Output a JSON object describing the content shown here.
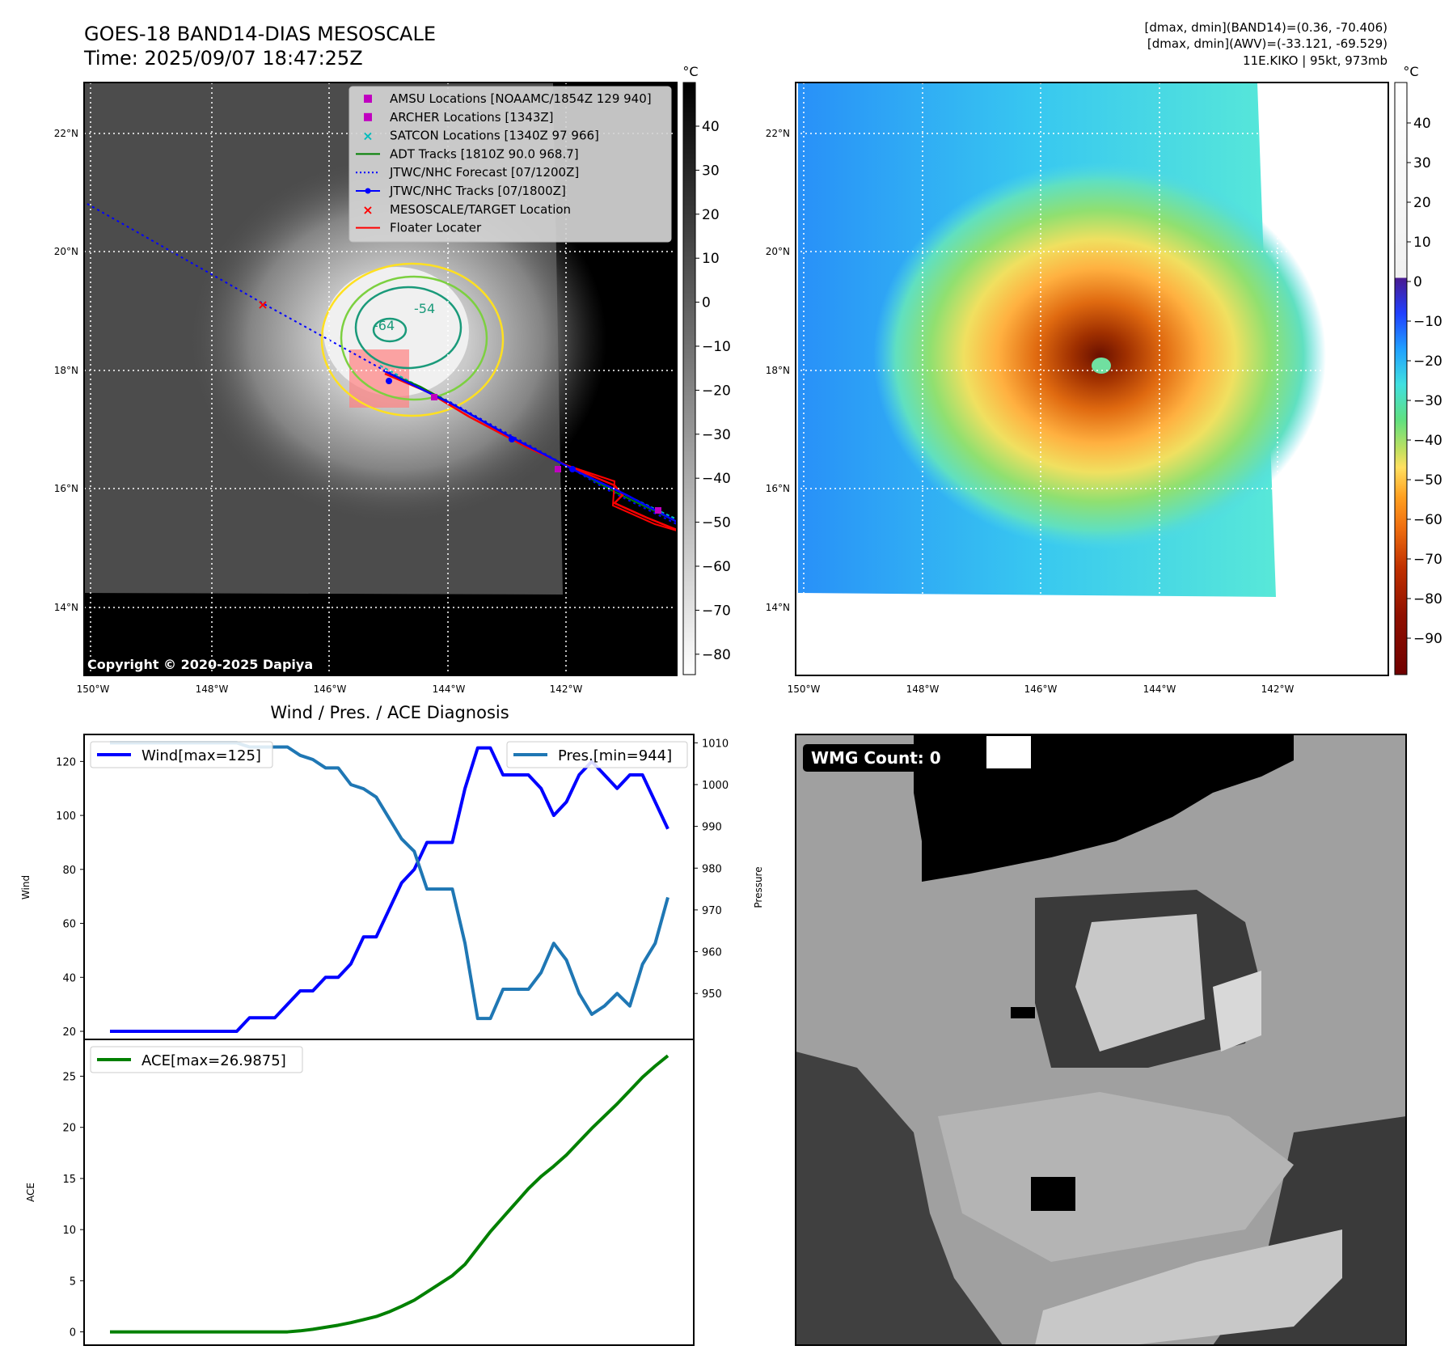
{
  "header": {
    "title_line1": "GOES-18 BAND14-DIAS MESOSCALE",
    "title_line2": "Time: 2025/09/07 18:47:25Z",
    "info_line1": "[dmax, dmin](BAND14)=(0.36, -70.406)",
    "info_line2": "[dmax, dmin](AWV)=(-33.121, -69.529)",
    "info_line3": "11E.KIKO | 95kt, 973mb"
  },
  "map": {
    "lat_labels": [
      "22°N",
      "20°N",
      "18°N",
      "16°N",
      "14°N"
    ],
    "lon_labels": [
      "150°W",
      "148°W",
      "146°W",
      "144°W",
      "142°W"
    ],
    "copyright": "Copyright © 2020-2025 Dapiya",
    "contour_labels": [
      "-54",
      "-64"
    ],
    "legend": [
      {
        "label": "AMSU Locations [NOAAMC/1854Z 129 940]",
        "color": "#c000c0",
        "marker": "square"
      },
      {
        "label": "ARCHER Locations [1343Z]",
        "color": "#c000c0",
        "marker": "square"
      },
      {
        "label": "SATCON Locations [1340Z 97 966]",
        "color": "#00bcbc",
        "marker": "x"
      },
      {
        "label": "ADT Tracks [1810Z 90.0 968.7]",
        "color": "#008000",
        "marker": "line"
      },
      {
        "label": "JTWC/NHC Forecast [07/1200Z]",
        "color": "#0000ff",
        "marker": "dotted"
      },
      {
        "label": "JTWC/NHC Tracks [07/1800Z]",
        "color": "#0000ff",
        "marker": "line-dot"
      },
      {
        "label": "MESOSCALE/TARGET Location",
        "color": "#ff0000",
        "marker": "x"
      },
      {
        "label": "Floater Locater",
        "color": "#ff0000",
        "marker": "line"
      }
    ],
    "colorbar_gray": {
      "unit": "°C",
      "ticks": [
        "40",
        "30",
        "20",
        "10",
        "0",
        "−10",
        "−20",
        "−30",
        "−40",
        "−50",
        "−60",
        "−70",
        "−80"
      ]
    },
    "colorbar_color": {
      "unit": "°C",
      "ticks": [
        "40",
        "30",
        "20",
        "10",
        "0",
        "−10",
        "−20",
        "−30",
        "−40",
        "−50",
        "−60",
        "−70",
        "−80",
        "−90"
      ]
    }
  },
  "wmg": {
    "label": "WMG Count: 0"
  },
  "chart_data": [
    {
      "type": "line",
      "title": "Wind / Pres. / ACE Diagnosis",
      "ylabel": "Wind",
      "ylabel_right": "Pressure",
      "ylim": [
        17,
        130
      ],
      "ylim_right": [
        939,
        1012
      ],
      "yticks": [
        20,
        40,
        60,
        80,
        100,
        120
      ],
      "yticks_right": [
        950,
        960,
        970,
        980,
        990,
        1000,
        1010
      ],
      "series": [
        {
          "name": "Wind[max=125]",
          "color": "#0000ff",
          "values": [
            20,
            20,
            20,
            20,
            20,
            20,
            20,
            20,
            20,
            20,
            20,
            25,
            25,
            25,
            30,
            35,
            35,
            40,
            40,
            45,
            55,
            55,
            65,
            75,
            80,
            90,
            90,
            90,
            110,
            125,
            125,
            115,
            115,
            115,
            110,
            100,
            105,
            115,
            120,
            115,
            110,
            115,
            115,
            105,
            95
          ]
        },
        {
          "name": "Pres.[min=944]",
          "color": "#1f77b4",
          "axis": "right",
          "values": [
            1010,
            1010,
            1010,
            1010,
            1010,
            1010,
            1010,
            1010,
            1010,
            1010,
            1010,
            1009,
            1009,
            1009,
            1009,
            1007,
            1006,
            1004,
            1004,
            1000,
            999,
            997,
            992,
            987,
            984,
            975,
            975,
            975,
            962,
            944,
            944,
            951,
            951,
            951,
            955,
            962,
            958,
            950,
            945,
            947,
            950,
            947,
            957,
            962,
            973
          ]
        }
      ]
    },
    {
      "type": "line",
      "ylabel": "ACE",
      "ylim": [
        -1.3,
        28.6
      ],
      "yticks": [
        0,
        5,
        10,
        15,
        20,
        25
      ],
      "series": [
        {
          "name": "ACE[max=26.9875]",
          "color": "#008000",
          "values": [
            0,
            0,
            0,
            0,
            0,
            0,
            0,
            0,
            0,
            0,
            0,
            0,
            0,
            0,
            0,
            0.1,
            0.25,
            0.45,
            0.65,
            0.9,
            1.2,
            1.5,
            1.95,
            2.5,
            3.1,
            3.9,
            4.7,
            5.5,
            6.6,
            8.2,
            9.8,
            11.2,
            12.6,
            14.0,
            15.2,
            16.2,
            17.3,
            18.6,
            19.9,
            21.1,
            22.3,
            23.6,
            24.9,
            26.0,
            27.0
          ]
        }
      ]
    }
  ]
}
